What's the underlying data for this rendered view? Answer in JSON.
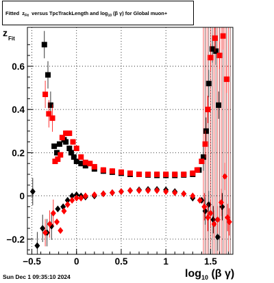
{
  "title": {
    "prefix": "Fitted",
    "z": "z",
    "z_sub": "Fit",
    "middle": "versus TpcTrackLength and log",
    "log_sub": "10",
    "beta_gamma": "(β γ)",
    "suffix": "for Global muon+"
  },
  "footer": "Sun Dec  1 09:35:10 2024",
  "axis_labels": {
    "y_main": "z",
    "y_sub": "Fit",
    "x_main": "log",
    "x_sub": "10",
    "x_tail": "(β γ)"
  },
  "colors": {
    "black_series": "#000000",
    "red_series": "#ff0000",
    "dark_series": "#5a0000"
  },
  "chart_data": {
    "type": "scatter",
    "xlim": [
      -0.55,
      1.75
    ],
    "ylim": [
      -0.27,
      0.78
    ],
    "x_ticks": [
      -0.5,
      0,
      0.5,
      1,
      1.5
    ],
    "x_tick_labels": [
      "−0.5",
      "0",
      "0.5",
      "1",
      "1.5"
    ],
    "y_ticks": [
      -0.2,
      0,
      0.2,
      0.4,
      0.6
    ],
    "y_tick_labels": [
      "−0.2",
      "0",
      "0.2",
      "0.4",
      "0.6"
    ],
    "grid": true,
    "series": [
      {
        "marker": "square",
        "color": "#000000",
        "points": [
          [
            -0.36,
            0.7
          ],
          [
            -0.32,
            0.56
          ],
          [
            -0.29,
            0.42
          ],
          [
            -0.25,
            0.23
          ],
          [
            -0.22,
            0.2
          ],
          [
            -0.19,
            0.24
          ],
          [
            -0.14,
            0.26
          ],
          [
            -0.12,
            0.25
          ],
          [
            -0.08,
            0.22
          ],
          [
            -0.06,
            0.2
          ],
          [
            -0.03,
            0.18
          ],
          [
            0.0,
            0.16
          ],
          [
            0.05,
            0.15
          ],
          [
            0.1,
            0.14
          ],
          [
            0.2,
            0.125
          ],
          [
            0.3,
            0.115
          ],
          [
            0.4,
            0.11
          ],
          [
            0.5,
            0.105
          ],
          [
            0.6,
            0.1
          ],
          [
            0.7,
            0.1
          ],
          [
            0.8,
            0.097
          ],
          [
            0.9,
            0.095
          ],
          [
            1.0,
            0.095
          ],
          [
            1.1,
            0.095
          ],
          [
            1.2,
            0.097
          ],
          [
            1.3,
            0.1
          ],
          [
            1.37,
            0.12
          ],
          [
            1.42,
            0.18
          ],
          [
            1.45,
            0.3
          ],
          [
            1.48,
            0.52
          ],
          [
            1.52,
            0.68
          ],
          [
            1.56,
            0.67
          ],
          [
            1.59,
            0.42
          ]
        ]
      },
      {
        "marker": "square",
        "color": "#ff0000",
        "points": [
          [
            -0.35,
            0.47
          ],
          [
            -0.31,
            0.38
          ],
          [
            -0.27,
            0.36
          ],
          [
            -0.24,
            0.16
          ],
          [
            -0.21,
            0.17
          ],
          [
            -0.18,
            0.19
          ],
          [
            -0.16,
            0.27
          ],
          [
            -0.12,
            0.29
          ],
          [
            -0.08,
            0.29
          ],
          [
            -0.04,
            0.25
          ],
          [
            0.0,
            0.22
          ],
          [
            0.05,
            0.18
          ],
          [
            0.1,
            0.155
          ],
          [
            0.15,
            0.15
          ],
          [
            0.2,
            0.135
          ],
          [
            0.3,
            0.12
          ],
          [
            0.4,
            0.115
          ],
          [
            0.5,
            0.11
          ],
          [
            0.6,
            0.105
          ],
          [
            0.7,
            0.1
          ],
          [
            0.8,
            0.1
          ],
          [
            0.9,
            0.1
          ],
          [
            1.0,
            0.1
          ],
          [
            1.1,
            0.1
          ],
          [
            1.2,
            0.1
          ],
          [
            1.3,
            0.105
          ],
          [
            1.35,
            0.12
          ],
          [
            1.4,
            0.16
          ],
          [
            1.44,
            0.24
          ],
          [
            1.47,
            0.4
          ],
          [
            1.5,
            0.64
          ],
          [
            1.55,
            0.73
          ],
          [
            1.6,
            0.65
          ],
          [
            1.64,
            0.74
          ],
          [
            1.68,
            0.54
          ]
        ]
      },
      {
        "marker": "diamond",
        "color": "#000000",
        "points": [
          [
            -0.49,
            0.02
          ],
          [
            -0.44,
            -0.23
          ],
          [
            -0.38,
            -0.15
          ],
          [
            -0.33,
            -0.17
          ],
          [
            -0.28,
            -0.14
          ],
          [
            -0.21,
            -0.06
          ],
          [
            -0.15,
            -0.05
          ],
          [
            -0.1,
            -0.02
          ],
          [
            -0.05,
            0.0
          ],
          [
            0.0,
            0.005
          ],
          [
            0.05,
            0.0
          ],
          [
            0.1,
            -0.005
          ],
          [
            0.2,
            0.0
          ],
          [
            0.3,
            0.01
          ],
          [
            0.4,
            0.015
          ],
          [
            0.5,
            0.02
          ],
          [
            0.6,
            0.025
          ],
          [
            0.7,
            0.028
          ],
          [
            0.8,
            0.03
          ],
          [
            0.9,
            0.03
          ],
          [
            1.0,
            0.028
          ],
          [
            1.1,
            0.02
          ],
          [
            1.2,
            0.01
          ],
          [
            1.3,
            -0.01
          ],
          [
            1.4,
            -0.02
          ],
          [
            1.44,
            -0.07
          ],
          [
            1.48,
            -0.04
          ],
          [
            1.53,
            -0.11
          ],
          [
            1.58,
            -0.19
          ],
          [
            1.63,
            -0.05
          ]
        ]
      },
      {
        "marker": "diamond",
        "color": "#ff0000",
        "points": [
          [
            -0.35,
            -0.17
          ],
          [
            -0.3,
            -0.13
          ],
          [
            -0.26,
            -0.08
          ],
          [
            -0.22,
            -0.12
          ],
          [
            -0.18,
            -0.16
          ],
          [
            -0.14,
            -0.07
          ],
          [
            -0.1,
            -0.04
          ],
          [
            -0.05,
            -0.02
          ],
          [
            0.0,
            -0.01
          ],
          [
            0.05,
            -0.01
          ],
          [
            0.1,
            0.0
          ],
          [
            0.2,
            0.005
          ],
          [
            0.3,
            0.01
          ],
          [
            0.4,
            0.015
          ],
          [
            0.5,
            0.02
          ],
          [
            0.6,
            0.025
          ],
          [
            0.7,
            0.025
          ],
          [
            0.8,
            0.025
          ],
          [
            0.9,
            0.025
          ],
          [
            1.0,
            0.02
          ],
          [
            1.1,
            0.015
          ],
          [
            1.2,
            0.01
          ],
          [
            1.3,
            0.0
          ],
          [
            1.38,
            -0.02
          ],
          [
            1.43,
            -0.05
          ],
          [
            1.47,
            -0.1
          ],
          [
            1.5,
            -0.08
          ],
          [
            1.54,
            -0.13
          ],
          [
            1.58,
            -0.11
          ],
          [
            1.62,
            -0.03
          ],
          [
            1.66,
            0.09
          ],
          [
            1.69,
            -0.1
          ],
          [
            1.71,
            -0.12
          ]
        ]
      }
    ]
  }
}
